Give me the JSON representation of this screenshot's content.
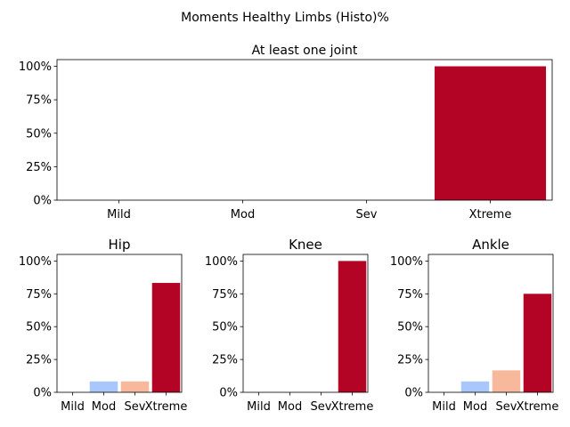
{
  "figure": {
    "suptitle": "Moments Healthy Limbs (Histo)%"
  },
  "chart_data": [
    {
      "type": "bar",
      "title": "At least one joint",
      "categories": [
        "Mild",
        "Mod",
        "Sev",
        "Xtreme"
      ],
      "values": [
        0,
        0,
        0,
        100
      ],
      "colors": [
        "#3b4cc0",
        "#aac7fd",
        "#f7b89c",
        "#b40426"
      ],
      "ylim": [
        0,
        105
      ],
      "yticks": [
        0,
        25,
        50,
        75,
        100
      ],
      "ytick_labels": [
        "0%",
        "25%",
        "50%",
        "75%",
        "100%"
      ]
    },
    {
      "type": "bar",
      "title": "Hip",
      "categories": [
        "Mild",
        "Mod",
        "Sev",
        "Xtreme"
      ],
      "values": [
        0,
        8.3,
        8.3,
        83.3
      ],
      "colors": [
        "#3b4cc0",
        "#aac7fd",
        "#f7b89c",
        "#b40426"
      ],
      "ylim": [
        0,
        105
      ],
      "yticks": [
        0,
        25,
        50,
        75,
        100
      ],
      "ytick_labels": [
        "0%",
        "25%",
        "50%",
        "75%",
        "100%"
      ]
    },
    {
      "type": "bar",
      "title": "Knee",
      "categories": [
        "Mild",
        "Mod",
        "Sev",
        "Xtreme"
      ],
      "values": [
        0,
        0,
        0,
        100
      ],
      "colors": [
        "#3b4cc0",
        "#aac7fd",
        "#f7b89c",
        "#b40426"
      ],
      "ylim": [
        0,
        105
      ],
      "yticks": [
        0,
        25,
        50,
        75,
        100
      ],
      "ytick_labels": [
        "0%",
        "25%",
        "50%",
        "75%",
        "100%"
      ]
    },
    {
      "type": "bar",
      "title": "Ankle",
      "categories": [
        "Mild",
        "Mod",
        "Sev",
        "Xtreme"
      ],
      "values": [
        0,
        8.3,
        16.7,
        75
      ],
      "colors": [
        "#3b4cc0",
        "#aac7fd",
        "#f7b89c",
        "#b40426"
      ],
      "ylim": [
        0,
        105
      ],
      "yticks": [
        0,
        25,
        50,
        75,
        100
      ],
      "ytick_labels": [
        "0%",
        "25%",
        "50%",
        "75%",
        "100%"
      ]
    }
  ]
}
